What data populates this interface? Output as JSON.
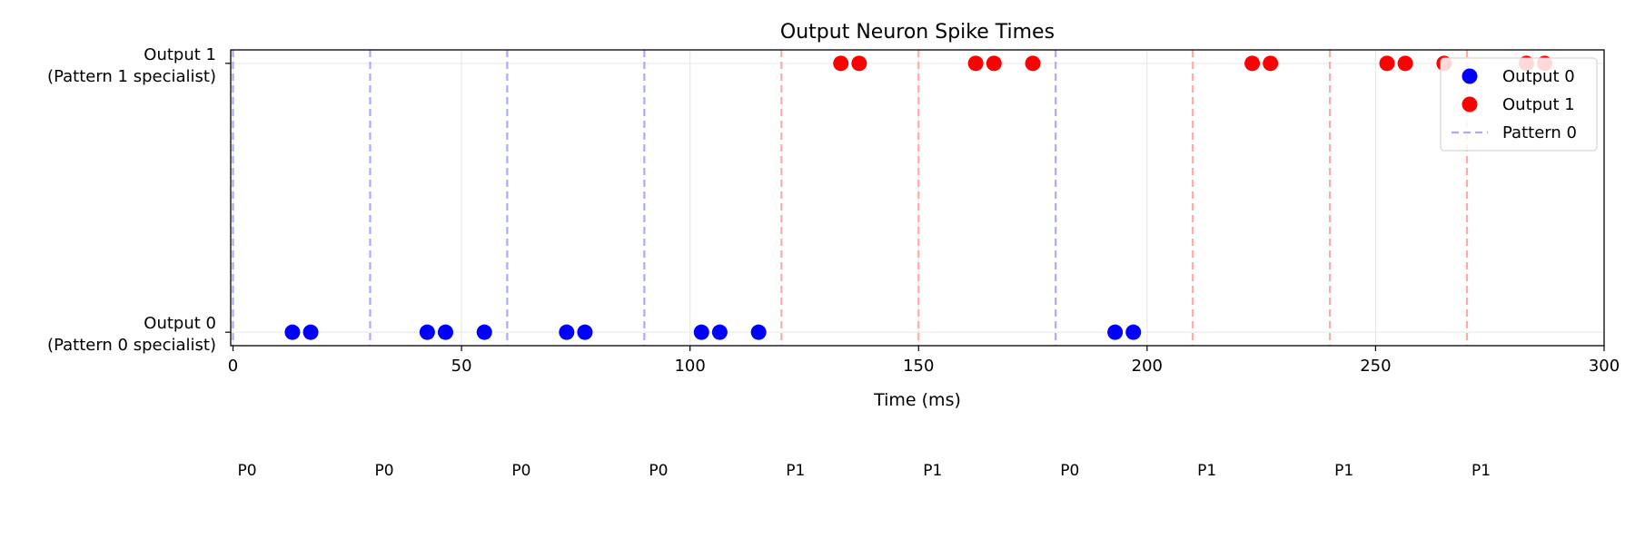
{
  "chart_data": {
    "type": "scatter",
    "title": "Output Neuron Spike Times",
    "xlabel": "Time (ms)",
    "ylabel": "",
    "xlim": [
      -0.5,
      300
    ],
    "ylim": [
      -0.05,
      1.05
    ],
    "x_ticks": [
      0,
      50,
      100,
      150,
      200,
      250,
      300
    ],
    "y_ticks": [
      {
        "value": 0,
        "line1": "Output 0",
        "line2": "(Pattern 0 specialist)"
      },
      {
        "value": 1,
        "line1": "Output 1",
        "line2": "(Pattern 1 specialist)"
      }
    ],
    "grid": true,
    "legend_position": "top-right",
    "legend": [
      {
        "label": "Output 0",
        "kind": "marker",
        "color": "#0000ff"
      },
      {
        "label": "Output 1",
        "kind": "marker",
        "color": "#ff0000"
      },
      {
        "label": "Pattern 0",
        "kind": "dashed-line",
        "color": "#aaaaff"
      }
    ],
    "series": [
      {
        "name": "Output 0",
        "color": "#0000ff",
        "y": 0,
        "x": [
          13,
          17,
          42.5,
          46.5,
          55,
          73,
          77,
          102.5,
          106.5,
          115,
          193,
          197
        ]
      },
      {
        "name": "Output 1",
        "color": "#ff0000",
        "y": 1,
        "x": [
          133,
          137,
          162.5,
          166.5,
          175,
          223,
          227,
          252.5,
          256.5,
          265,
          283,
          287
        ]
      }
    ],
    "pattern_markers": [
      {
        "time": 0,
        "pattern": "P0"
      },
      {
        "time": 30,
        "pattern": "P0"
      },
      {
        "time": 60,
        "pattern": "P0"
      },
      {
        "time": 90,
        "pattern": "P0"
      },
      {
        "time": 120,
        "pattern": "P1"
      },
      {
        "time": 150,
        "pattern": "P1"
      },
      {
        "time": 180,
        "pattern": "P0"
      },
      {
        "time": 210,
        "pattern": "P1"
      },
      {
        "time": 240,
        "pattern": "P1"
      },
      {
        "time": 270,
        "pattern": "P1"
      }
    ],
    "pattern_colors": {
      "P0": "#0000ff",
      "P1": "#ff0000"
    },
    "pattern_line_colors": {
      "P0": "#aaaaff",
      "P1": "#ffaaaa"
    }
  }
}
